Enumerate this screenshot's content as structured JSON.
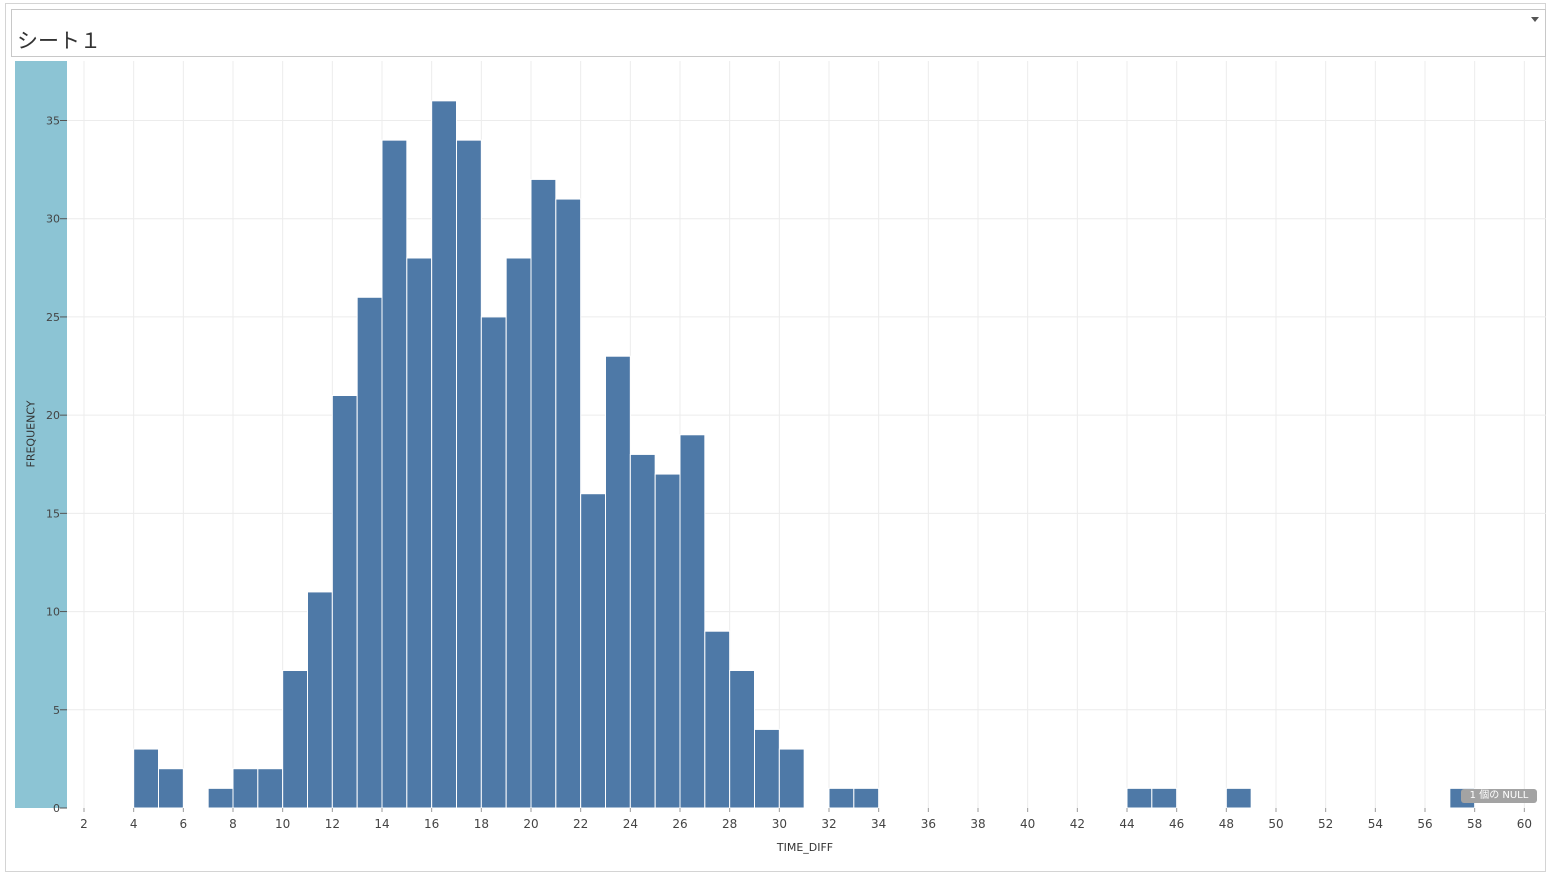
{
  "sheet": {
    "title": "シート１"
  },
  "chart_data": {
    "type": "bar",
    "title": "シート１",
    "xlabel": "TIME_DIFF",
    "ylabel": "FREQUENCY",
    "bin_width": 1,
    "x": [
      4,
      5,
      7,
      8,
      9,
      10,
      11,
      12,
      13,
      14,
      15,
      16,
      17,
      18,
      19,
      20,
      21,
      22,
      23,
      24,
      25,
      26,
      27,
      28,
      29,
      30,
      32,
      33,
      44,
      45,
      48,
      57
    ],
    "values": [
      3,
      2,
      1,
      2,
      2,
      7,
      11,
      21,
      26,
      34,
      28,
      36,
      34,
      25,
      28,
      32,
      31,
      16,
      23,
      18,
      17,
      19,
      9,
      7,
      4,
      3,
      1,
      1,
      1,
      1,
      1,
      1
    ],
    "xlim": [
      1,
      60.5
    ],
    "ylim": [
      0,
      38
    ],
    "x_ticks": [
      2,
      4,
      6,
      8,
      10,
      12,
      14,
      16,
      18,
      20,
      22,
      24,
      26,
      28,
      30,
      32,
      34,
      36,
      38,
      40,
      42,
      44,
      46,
      48,
      50,
      52,
      54,
      56,
      58,
      60
    ],
    "y_ticks": [
      0,
      5,
      10,
      15,
      20,
      25,
      30,
      35
    ],
    "grid": true,
    "bar_color": "#4e79a7",
    "axis_band_color": "#8cc4d4",
    "null_note": "1 個の NULL"
  }
}
